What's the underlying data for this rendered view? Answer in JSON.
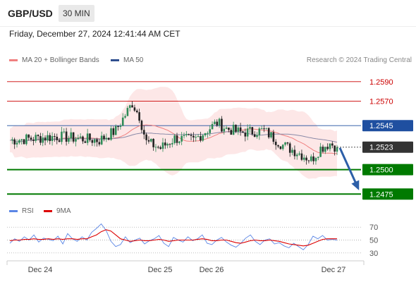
{
  "header": {
    "symbol": "GBP/USD",
    "timeframe": "30 MIN",
    "datetime": "Friday, December 27, 2024 12:41:44 AM CET"
  },
  "legend": {
    "ma20_label": "MA 20 + Bollinger Bands",
    "ma20_color": "#f08080",
    "ma50_label": "MA 50",
    "ma50_color": "#2f4f8f",
    "credit": "Research © 2024 Trading Central",
    "rsi_label": "RSI",
    "rsi_color": "#5b86e5",
    "ma9_label": "9MA",
    "ma9_color": "#dd0000"
  },
  "chart_data": [
    {
      "type": "line",
      "title": "GBP/USD 30 MIN",
      "ylim": [
        1.2468,
        1.2605
      ],
      "x_tick_labels": [
        "Dec 24",
        "Dec 25",
        "Dec 26",
        "Dec 27"
      ],
      "last_price": 1.2523,
      "price_high": 1.2572,
      "price_low": 1.2498,
      "levels": [
        {
          "value": 1.259,
          "label": "1.2590",
          "color": "#cc0000",
          "style": "thin"
        },
        {
          "value": 1.257,
          "label": "1.2570",
          "color": "#cc0000",
          "style": "thin"
        },
        {
          "value": 1.2545,
          "label": "1.2545",
          "color": "#1f4fa0",
          "style": "thin"
        },
        {
          "value": 1.25,
          "label": "1.2500",
          "color": "#007a00",
          "style": "thick"
        },
        {
          "value": 1.2475,
          "label": "1.2475",
          "color": "#007a00",
          "style": "thick"
        }
      ],
      "forecast": {
        "from": 1.2523,
        "to": 1.2478,
        "color": "#2d5fa8"
      }
    },
    {
      "type": "line",
      "title": "RSI",
      "ylim": [
        20,
        80
      ],
      "y_ticks": [
        70,
        50,
        30
      ],
      "series": [
        {
          "name": "RSI",
          "values": [
            45,
            52,
            48,
            55,
            50,
            58,
            47,
            53,
            51,
            49,
            56,
            44,
            60,
            52,
            48,
            55,
            50,
            62,
            68,
            75,
            65,
            48,
            40,
            43,
            55,
            46,
            50,
            53,
            44,
            49,
            52,
            57,
            45,
            40,
            54,
            50,
            47,
            55,
            49,
            52,
            58,
            45,
            43,
            50,
            54,
            47,
            42,
            39,
            45,
            53,
            58,
            48,
            43,
            50,
            52,
            44,
            46,
            41,
            38,
            45,
            40,
            35,
            43,
            56,
            52,
            57,
            50,
            51,
            50
          ]
        },
        {
          "name": "9MA",
          "values": [
            49,
            50,
            50,
            51,
            51,
            52,
            51,
            51,
            52,
            51,
            52,
            51,
            52,
            52,
            51,
            52,
            52,
            55,
            58,
            63,
            66,
            64,
            58,
            52,
            50,
            48,
            49,
            50,
            49,
            49,
            50,
            51,
            50,
            48,
            49,
            50,
            50,
            50,
            50,
            51,
            52,
            51,
            49,
            49,
            50,
            50,
            48,
            46,
            45,
            47,
            49,
            50,
            49,
            49,
            50,
            49,
            48,
            46,
            44,
            43,
            42,
            41,
            42,
            45,
            48,
            51,
            52,
            52,
            52
          ]
        }
      ]
    }
  ]
}
